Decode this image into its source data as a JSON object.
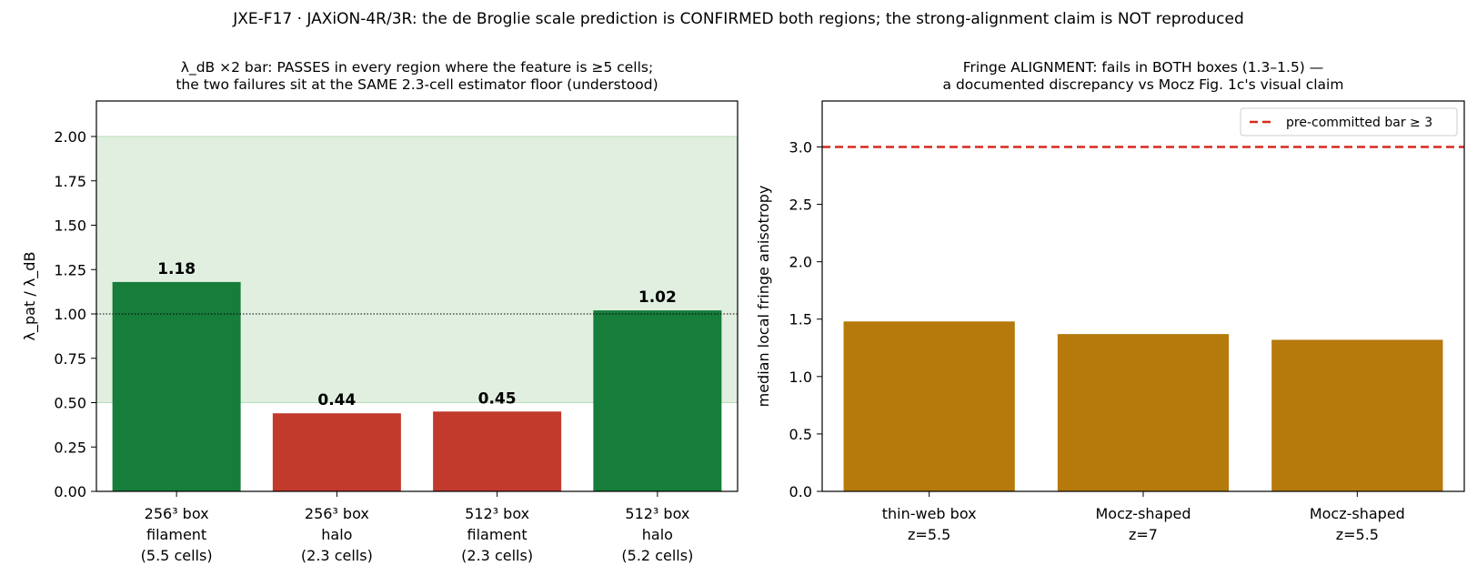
{
  "suptitle": "JXE-F17 · JAXiON-4R/3R: the de Broglie scale prediction is CONFIRMED both regions; the strong-alignment claim is NOT reproduced",
  "chart_data": [
    {
      "type": "bar",
      "title_lines": [
        "λ_dB ×2 bar: PASSES in every region where the feature is ≥5 cells;",
        "the two failures sit at the SAME 2.3-cell estimator floor (understood)"
      ],
      "ylabel": "λ_pat / λ_dB",
      "ylim": [
        0,
        2.2
      ],
      "yticks": [
        "0.00",
        "0.25",
        "0.50",
        "0.75",
        "1.00",
        "1.25",
        "1.50",
        "1.75",
        "2.00"
      ],
      "categories": [
        [
          "256³ box",
          "filament",
          "(5.5 cells)"
        ],
        [
          "256³ box",
          "halo",
          "(2.3 cells)"
        ],
        [
          "512³ box",
          "filament",
          "(2.3 cells)"
        ],
        [
          "512³ box",
          "halo",
          "(5.2 cells)"
        ]
      ],
      "values": [
        1.18,
        0.44,
        0.45,
        1.02
      ],
      "value_labels": [
        "1.18",
        "0.44",
        "0.45",
        "1.02"
      ],
      "bar_colors": [
        "#167d3a",
        "#c13a2c",
        "#c13a2c",
        "#167d3a"
      ],
      "pass_band": [
        0.5,
        2.0
      ],
      "pass_band_color": "#e0efe0",
      "reference_line": 1.0
    },
    {
      "type": "bar",
      "title_lines": [
        "Fringe ALIGNMENT: fails in BOTH boxes (1.3–1.5) —",
        "a documented discrepancy vs Mocz Fig. 1c's visual claim"
      ],
      "ylabel": "median local fringe anisotropy",
      "ylim": [
        0,
        3.4
      ],
      "yticks": [
        "0.0",
        "0.5",
        "1.0",
        "1.5",
        "2.0",
        "2.5",
        "3.0"
      ],
      "categories": [
        [
          "thin-web box",
          "z=5.5"
        ],
        [
          "Mocz-shaped",
          "z=7"
        ],
        [
          "Mocz-shaped",
          "z=5.5"
        ]
      ],
      "values": [
        1.48,
        1.37,
        1.32
      ],
      "bar_color": "#b5790c",
      "threshold": 3.0,
      "threshold_color": "#d62a1e",
      "legend": {
        "label": "pre-committed bar ≥ 3",
        "position": "top-right"
      }
    }
  ]
}
